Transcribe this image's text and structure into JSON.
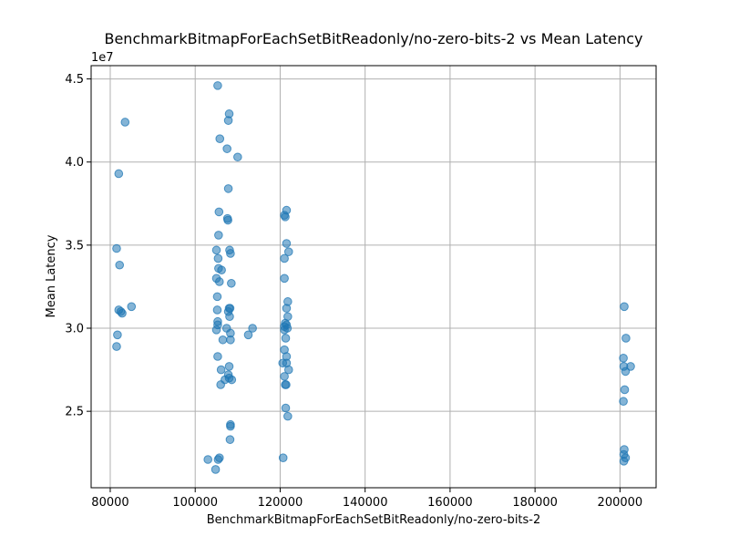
{
  "chart_data": {
    "type": "scatter",
    "title": "BenchmarkBitmapForEachSetBitReadonly/no-zero-bits-2 vs Mean Latency",
    "xlabel": "BenchmarkBitmapForEachSetBitReadonly/no-zero-bits-2",
    "ylabel": "Mean Latency",
    "y_offset_text": "1e7",
    "xlim": [
      75500,
      208500
    ],
    "ylim": [
      20400000,
      45800000
    ],
    "x_ticks": [
      80000,
      100000,
      120000,
      140000,
      160000,
      180000,
      200000
    ],
    "x_tick_labels": [
      "80000",
      "100000",
      "120000",
      "140000",
      "160000",
      "180000",
      "200000"
    ],
    "y_ticks": [
      25000000,
      30000000,
      35000000,
      40000000,
      45000000
    ],
    "y_tick_labels": [
      "2.5",
      "3.0",
      "3.5",
      "4.0",
      "4.5"
    ],
    "grid": true,
    "marker_color": "#1f77b4",
    "marker_alpha": 0.55,
    "points": [
      {
        "x": 83500,
        "y": 42400000
      },
      {
        "x": 82000,
        "y": 39300000
      },
      {
        "x": 81500,
        "y": 34800000
      },
      {
        "x": 82200,
        "y": 33800000
      },
      {
        "x": 82000,
        "y": 31100000
      },
      {
        "x": 82500,
        "y": 31000000
      },
      {
        "x": 82800,
        "y": 30900000
      },
      {
        "x": 85000,
        "y": 31300000
      },
      {
        "x": 81700,
        "y": 29600000
      },
      {
        "x": 81500,
        "y": 28900000
      },
      {
        "x": 105300,
        "y": 44600000
      },
      {
        "x": 108000,
        "y": 42900000
      },
      {
        "x": 107800,
        "y": 42500000
      },
      {
        "x": 105800,
        "y": 41400000
      },
      {
        "x": 107500,
        "y": 40800000
      },
      {
        "x": 110000,
        "y": 40300000
      },
      {
        "x": 107800,
        "y": 38400000
      },
      {
        "x": 105600,
        "y": 37000000
      },
      {
        "x": 107600,
        "y": 36600000
      },
      {
        "x": 107700,
        "y": 36500000
      },
      {
        "x": 105500,
        "y": 35600000
      },
      {
        "x": 105000,
        "y": 34700000
      },
      {
        "x": 108100,
        "y": 34700000
      },
      {
        "x": 108300,
        "y": 34500000
      },
      {
        "x": 105400,
        "y": 34200000
      },
      {
        "x": 105500,
        "y": 33600000
      },
      {
        "x": 106200,
        "y": 33500000
      },
      {
        "x": 105000,
        "y": 33000000
      },
      {
        "x": 105700,
        "y": 32800000
      },
      {
        "x": 108500,
        "y": 32700000
      },
      {
        "x": 105200,
        "y": 31900000
      },
      {
        "x": 108000,
        "y": 31200000
      },
      {
        "x": 108200,
        "y": 31200000
      },
      {
        "x": 105200,
        "y": 31100000
      },
      {
        "x": 107800,
        "y": 31000000
      },
      {
        "x": 108100,
        "y": 30700000
      },
      {
        "x": 105300,
        "y": 30400000
      },
      {
        "x": 105300,
        "y": 30200000
      },
      {
        "x": 113500,
        "y": 30000000
      },
      {
        "x": 105000,
        "y": 29900000
      },
      {
        "x": 107400,
        "y": 30000000
      },
      {
        "x": 108300,
        "y": 29700000
      },
      {
        "x": 112500,
        "y": 29600000
      },
      {
        "x": 106500,
        "y": 29300000
      },
      {
        "x": 108300,
        "y": 29300000
      },
      {
        "x": 105300,
        "y": 28300000
      },
      {
        "x": 108000,
        "y": 27700000
      },
      {
        "x": 106100,
        "y": 27500000
      },
      {
        "x": 107800,
        "y": 27200000
      },
      {
        "x": 108000,
        "y": 27000000
      },
      {
        "x": 107000,
        "y": 26900000
      },
      {
        "x": 108600,
        "y": 26900000
      },
      {
        "x": 106000,
        "y": 26600000
      },
      {
        "x": 108300,
        "y": 24200000
      },
      {
        "x": 108300,
        "y": 24100000
      },
      {
        "x": 108200,
        "y": 23300000
      },
      {
        "x": 105700,
        "y": 22200000
      },
      {
        "x": 105400,
        "y": 22100000
      },
      {
        "x": 103000,
        "y": 22100000
      },
      {
        "x": 104800,
        "y": 21500000
      },
      {
        "x": 121500,
        "y": 37100000
      },
      {
        "x": 121000,
        "y": 36800000
      },
      {
        "x": 121200,
        "y": 36700000
      },
      {
        "x": 121500,
        "y": 35100000
      },
      {
        "x": 122000,
        "y": 34600000
      },
      {
        "x": 121000,
        "y": 34200000
      },
      {
        "x": 121000,
        "y": 33000000
      },
      {
        "x": 121800,
        "y": 31600000
      },
      {
        "x": 121500,
        "y": 31200000
      },
      {
        "x": 121800,
        "y": 30700000
      },
      {
        "x": 121200,
        "y": 30300000
      },
      {
        "x": 121500,
        "y": 30200000
      },
      {
        "x": 121000,
        "y": 30100000
      },
      {
        "x": 121700,
        "y": 30000000
      },
      {
        "x": 121000,
        "y": 29900000
      },
      {
        "x": 121300,
        "y": 29400000
      },
      {
        "x": 121000,
        "y": 28700000
      },
      {
        "x": 121500,
        "y": 28300000
      },
      {
        "x": 120600,
        "y": 27900000
      },
      {
        "x": 121500,
        "y": 27900000
      },
      {
        "x": 122000,
        "y": 27500000
      },
      {
        "x": 121000,
        "y": 27100000
      },
      {
        "x": 121400,
        "y": 26600000
      },
      {
        "x": 121200,
        "y": 26600000
      },
      {
        "x": 121300,
        "y": 25200000
      },
      {
        "x": 121800,
        "y": 24700000
      },
      {
        "x": 120700,
        "y": 22200000
      },
      {
        "x": 201000,
        "y": 31300000
      },
      {
        "x": 201400,
        "y": 29400000
      },
      {
        "x": 200800,
        "y": 28200000
      },
      {
        "x": 200900,
        "y": 27700000
      },
      {
        "x": 202500,
        "y": 27700000
      },
      {
        "x": 201300,
        "y": 27400000
      },
      {
        "x": 201100,
        "y": 26300000
      },
      {
        "x": 200800,
        "y": 25600000
      },
      {
        "x": 201000,
        "y": 22700000
      },
      {
        "x": 200900,
        "y": 22400000
      },
      {
        "x": 201300,
        "y": 22200000
      },
      {
        "x": 200900,
        "y": 22000000
      }
    ]
  }
}
